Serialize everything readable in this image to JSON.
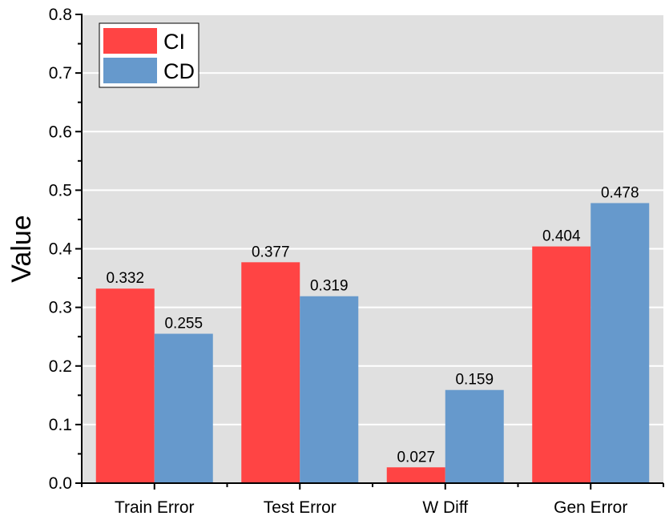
{
  "chart_data": {
    "type": "bar",
    "categories": [
      "Train Error",
      "Test Error",
      "W Diff",
      "Gen Error"
    ],
    "series": [
      {
        "name": "CI",
        "values": [
          0.332,
          0.377,
          0.027,
          0.404
        ],
        "color": "#ff4444"
      },
      {
        "name": "CD",
        "values": [
          0.255,
          0.319,
          0.159,
          0.478
        ],
        "color": "#6699cc"
      }
    ],
    "data_labels": {
      "CI": [
        "0.332",
        "0.377",
        "0.027",
        "0.404"
      ],
      "CD": [
        "0.255",
        "0.319",
        "0.159",
        "0.478"
      ]
    },
    "yticks": [
      "0.0",
      "0.1",
      "0.2",
      "0.3",
      "0.4",
      "0.5",
      "0.6",
      "0.7",
      "0.8"
    ],
    "title": "",
    "xlabel": "",
    "ylabel": "Value",
    "ylim": [
      0,
      0.8
    ],
    "ytick_step": 0.1,
    "grid": true,
    "grid_axis": "y",
    "background_color": "#e0e0e0",
    "grid_color": "#ffffff",
    "legend_position": "top-left"
  }
}
